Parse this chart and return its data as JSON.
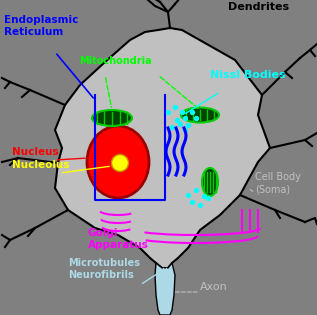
{
  "background_color": "#808080",
  "soma_color": "#c0c0c0",
  "nucleus_color": "#ff0000",
  "nucleolus_color": "#ffff00",
  "mito_color": "#00cc00",
  "nissl_color": "#00ffff",
  "er_color": "#0000ff",
  "golgi_color": "#ff00ff",
  "axon_fill": "#add8e6",
  "labels": {
    "endoplasmic_reticulum": "Endoplasmic\nReticulum",
    "mitochondria": "Mitochondria",
    "nissl_bodies": "Nissl Bodies",
    "nucleus": "Nucleus",
    "nucleolus": "Nucleolus",
    "golgi": "Golgi\nApparatus",
    "microtubules": "Microtubules\nNeurofibrils",
    "cell_body": "Cell Body\n(Soma)",
    "dendrites": "Dendrites",
    "axon": "Axon"
  },
  "label_colors": {
    "endoplasmic_reticulum": "#0000ff",
    "mitochondria": "#00ff00",
    "nissl_bodies": "#00ffff",
    "nucleus": "#ff0000",
    "nucleolus": "#ffff00",
    "golgi": "#ff00ff",
    "microtubules": "#add8e6",
    "cell_body": "#c0c0c0",
    "dendrites": "#000000",
    "axon": "#c0c0c0"
  }
}
